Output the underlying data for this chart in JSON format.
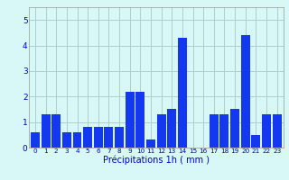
{
  "bar_values": [
    0.6,
    1.3,
    1.3,
    0.6,
    0.6,
    0.8,
    0.8,
    0.8,
    0.8,
    2.2,
    2.2,
    0.3,
    1.3,
    1.5,
    4.3,
    0.0,
    0.0,
    1.3,
    1.3,
    1.5,
    4.4,
    0.5,
    1.3,
    1.3
  ],
  "bar_color": "#1438f0",
  "background_color": "#d8f8f8",
  "grid_color": "#aecece",
  "xlabel": "Précipitations 1h ( mm )",
  "xlabel_color": "#0000cc",
  "tick_color": "#0000cc",
  "ylim": [
    0,
    5.5
  ],
  "yticks": [
    0,
    1,
    2,
    3,
    4,
    5
  ],
  "figwidth": 3.2,
  "figheight": 2.0,
  "dpi": 100
}
